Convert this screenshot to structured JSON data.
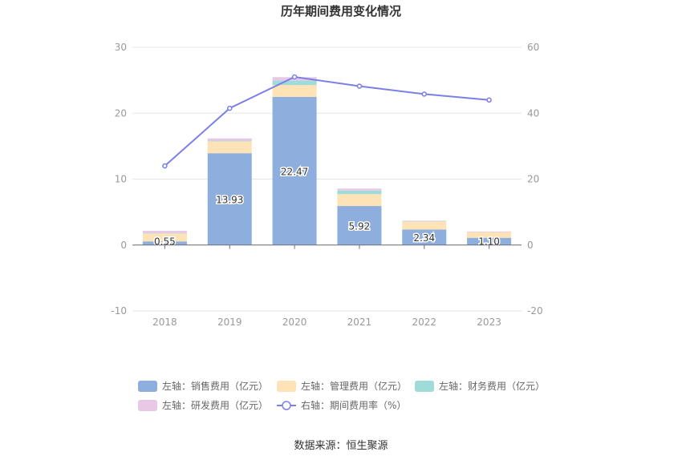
{
  "chart_data": {
    "type": "bar",
    "title": "历年期间费用变化情况",
    "categories": [
      "2018",
      "2019",
      "2020",
      "2021",
      "2022",
      "2023"
    ],
    "y_left": {
      "ticks": [
        -10,
        0,
        10,
        20,
        30
      ],
      "ylim": [
        -10,
        30
      ]
    },
    "y_right": {
      "ticks": [
        -20,
        0,
        20,
        40,
        60
      ],
      "ylim": [
        -20,
        60
      ]
    },
    "series": [
      {
        "name": "左轴：销售费用（亿元）",
        "kind": "bar",
        "axis": "left",
        "color": "#8eaedd",
        "values": [
          0.55,
          13.93,
          22.47,
          5.92,
          2.34,
          1.1
        ],
        "labels": [
          "0.55",
          "13.93",
          "22.47",
          "5.92",
          "2.34",
          "1.10"
        ]
      },
      {
        "name": "左轴：管理费用（亿元）",
        "kind": "bar",
        "axis": "left",
        "color": "#fde3b6",
        "values": [
          1.2,
          1.8,
          1.8,
          1.8,
          1.2,
          0.85
        ]
      },
      {
        "name": "左轴：财务费用（亿元）",
        "kind": "bar",
        "axis": "left",
        "color": "#9fdcd9",
        "values": [
          0.05,
          0.1,
          0.7,
          0.55,
          0.05,
          0.0
        ]
      },
      {
        "name": "左轴：研发费用（亿元）",
        "kind": "bar",
        "axis": "left",
        "color": "#e9c8e6",
        "values": [
          0.35,
          0.35,
          0.5,
          0.3,
          0.1,
          0.1
        ]
      },
      {
        "name": "右轴：期间费用率（%）",
        "kind": "line",
        "axis": "right",
        "color": "#7b7fe6",
        "values": [
          24.0,
          41.5,
          51.0,
          48.2,
          45.8,
          44.0
        ]
      }
    ],
    "legend_position": "bottom",
    "grid": true
  },
  "source_note": "数据来源：恒生聚源"
}
